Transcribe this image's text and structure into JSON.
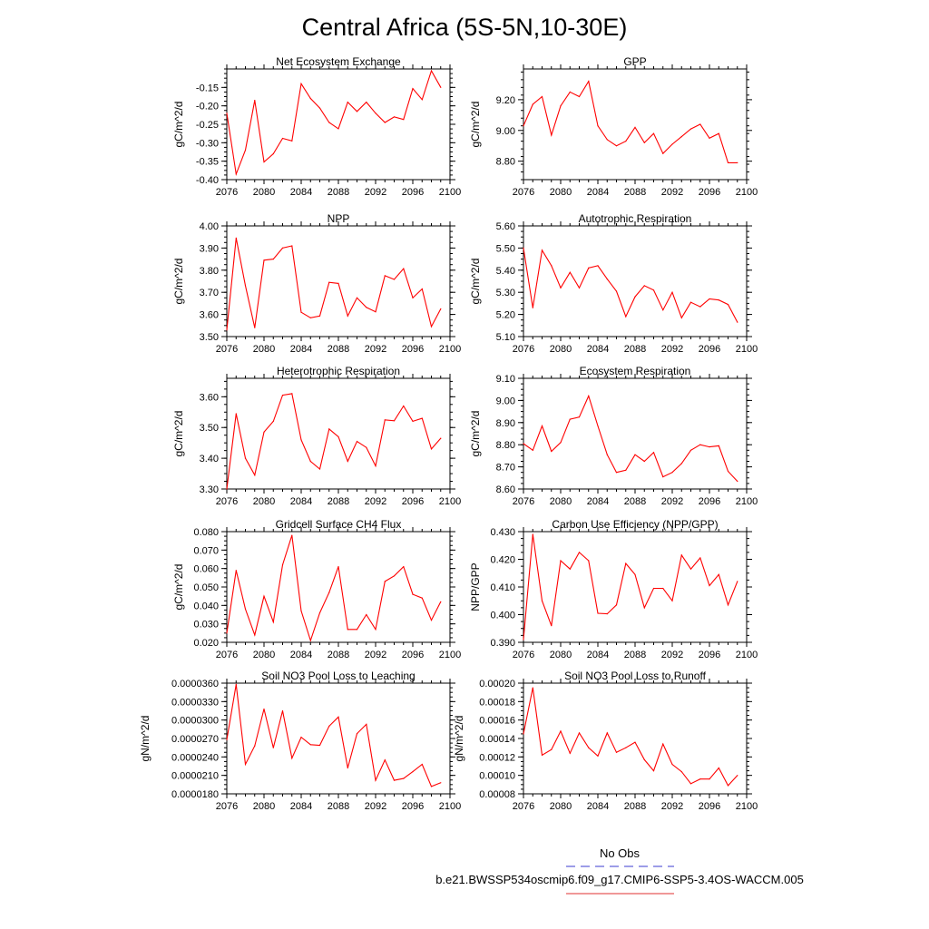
{
  "figure": {
    "title": "Central Africa (5S-5N,10-30E)",
    "legend": {
      "entries": [
        {
          "label": "No Obs",
          "color": "#3b3bd0",
          "dash": true
        },
        {
          "label": "b.e21.BWSSP534oscmip6.f09_g17.CMIP6-SSP5-3.4OS-WACCM.005",
          "color": "#e03030",
          "dash": false
        }
      ]
    },
    "line_color": "#ff0000"
  },
  "chart_data": [
    {
      "type": "line",
      "title": "Net Ecosystem Exchange",
      "ylabel": "gC/m^2/d",
      "xlim": [
        2076,
        2100
      ],
      "xticks": [
        "2076",
        "2080",
        "2084",
        "2088",
        "2092",
        "2096",
        "2100"
      ],
      "ylim": [
        -0.4,
        -0.1
      ],
      "yticks": [
        "-0.40",
        "-0.35",
        "-0.30",
        "-0.25",
        "-0.20",
        "-0.15"
      ],
      "series": [
        {
          "x": [
            2076,
            2077,
            2078,
            2079,
            2080,
            2081,
            2082,
            2083,
            2084,
            2085,
            2086,
            2087,
            2088,
            2089,
            2090,
            2091,
            2092,
            2093,
            2094,
            2095,
            2096,
            2097,
            2098,
            2099
          ],
          "values": [
            -0.22,
            -0.385,
            -0.32,
            -0.185,
            -0.352,
            -0.33,
            -0.288,
            -0.295,
            -0.14,
            -0.18,
            -0.206,
            -0.245,
            -0.262,
            -0.19,
            -0.215,
            -0.19,
            -0.22,
            -0.245,
            -0.23,
            -0.237,
            -0.153,
            -0.183,
            -0.105,
            -0.15
          ]
        }
      ]
    },
    {
      "type": "line",
      "title": "GPP",
      "ylabel": "gC/m^2/d",
      "xlim": [
        2076,
        2100
      ],
      "xticks": [
        "2076",
        "2080",
        "2084",
        "2088",
        "2092",
        "2096",
        "2100"
      ],
      "ylim": [
        8.68,
        9.4
      ],
      "yticks": [
        "8.80",
        "9.00",
        "9.20"
      ],
      "series": [
        {
          "x": [
            2076,
            2077,
            2078,
            2079,
            2080,
            2081,
            2082,
            2083,
            2084,
            2085,
            2086,
            2087,
            2088,
            2089,
            2090,
            2091,
            2092,
            2093,
            2094,
            2095,
            2096,
            2097,
            2098,
            2099
          ],
          "values": [
            9.03,
            9.17,
            9.22,
            8.97,
            9.16,
            9.25,
            9.22,
            9.32,
            9.03,
            8.94,
            8.9,
            8.93,
            9.02,
            8.92,
            8.98,
            8.85,
            8.91,
            8.96,
            9.01,
            9.04,
            8.95,
            8.98,
            8.79,
            8.79
          ]
        }
      ]
    },
    {
      "type": "line",
      "title": "NPP",
      "ylabel": "gC/m^2/d",
      "xlim": [
        2076,
        2100
      ],
      "xticks": [
        "2076",
        "2080",
        "2084",
        "2088",
        "2092",
        "2096",
        "2100"
      ],
      "ylim": [
        3.5,
        4.0
      ],
      "yticks": [
        "3.50",
        "3.60",
        "3.70",
        "3.80",
        "3.90",
        "4.00"
      ],
      "series": [
        {
          "x": [
            2076,
            2077,
            2078,
            2079,
            2080,
            2081,
            2082,
            2083,
            2084,
            2085,
            2086,
            2087,
            2088,
            2089,
            2090,
            2091,
            2092,
            2093,
            2094,
            2095,
            2096,
            2097,
            2098,
            2099
          ],
          "values": [
            3.53,
            3.945,
            3.73,
            3.54,
            3.845,
            3.85,
            3.9,
            3.91,
            3.61,
            3.585,
            3.593,
            3.745,
            3.74,
            3.593,
            3.675,
            3.632,
            3.612,
            3.775,
            3.758,
            3.807,
            3.675,
            3.715,
            3.545,
            3.625
          ]
        }
      ]
    },
    {
      "type": "line",
      "title": "Autotrophic Respiration",
      "ylabel": "gC/m^2/d",
      "xlim": [
        2076,
        2100
      ],
      "xticks": [
        "2076",
        "2080",
        "2084",
        "2088",
        "2092",
        "2096",
        "2100"
      ],
      "ylim": [
        5.1,
        5.6
      ],
      "yticks": [
        "5.10",
        "5.20",
        "5.30",
        "5.40",
        "5.50",
        "5.60"
      ],
      "series": [
        {
          "x": [
            2076,
            2077,
            2078,
            2079,
            2080,
            2081,
            2082,
            2083,
            2084,
            2085,
            2086,
            2087,
            2088,
            2089,
            2090,
            2091,
            2092,
            2093,
            2094,
            2095,
            2096,
            2097,
            2098,
            2099
          ],
          "values": [
            5.5,
            5.23,
            5.49,
            5.42,
            5.32,
            5.39,
            5.32,
            5.41,
            5.42,
            5.36,
            5.305,
            5.19,
            5.28,
            5.33,
            5.31,
            5.22,
            5.3,
            5.185,
            5.255,
            5.235,
            5.27,
            5.265,
            5.245,
            5.165
          ]
        }
      ]
    },
    {
      "type": "line",
      "title": "Heterotrophic Respiration",
      "ylabel": "gC/m^2/d",
      "xlim": [
        2076,
        2100
      ],
      "xticks": [
        "2076",
        "2080",
        "2084",
        "2088",
        "2092",
        "2096",
        "2100"
      ],
      "ylim": [
        3.3,
        3.66
      ],
      "yticks": [
        "3.30",
        "3.40",
        "3.50",
        "3.60"
      ],
      "series": [
        {
          "x": [
            2076,
            2077,
            2078,
            2079,
            2080,
            2081,
            2082,
            2083,
            2084,
            2085,
            2086,
            2087,
            2088,
            2089,
            2090,
            2091,
            2092,
            2093,
            2094,
            2095,
            2096,
            2097,
            2098,
            2099
          ],
          "values": [
            3.3,
            3.545,
            3.4,
            3.345,
            3.485,
            3.52,
            3.605,
            3.61,
            3.46,
            3.39,
            3.365,
            3.495,
            3.47,
            3.39,
            3.455,
            3.435,
            3.375,
            3.525,
            3.522,
            3.57,
            3.52,
            3.53,
            3.43,
            3.465
          ]
        }
      ]
    },
    {
      "type": "line",
      "title": "Ecosystem Respiration",
      "ylabel": "gC/m^2/d",
      "xlim": [
        2076,
        2100
      ],
      "xticks": [
        "2076",
        "2080",
        "2084",
        "2088",
        "2092",
        "2096",
        "2100"
      ],
      "ylim": [
        8.6,
        9.1
      ],
      "yticks": [
        "8.60",
        "8.70",
        "8.80",
        "8.90",
        "9.00",
        "9.10"
      ],
      "series": [
        {
          "x": [
            2076,
            2077,
            2078,
            2079,
            2080,
            2081,
            2082,
            2083,
            2084,
            2085,
            2086,
            2087,
            2088,
            2089,
            2090,
            2091,
            2092,
            2093,
            2094,
            2095,
            2096,
            2097,
            2098,
            2099
          ],
          "values": [
            8.805,
            8.775,
            8.885,
            8.77,
            8.81,
            8.915,
            8.925,
            9.02,
            8.885,
            8.755,
            8.675,
            8.685,
            8.755,
            8.725,
            8.765,
            8.655,
            8.675,
            8.715,
            8.775,
            8.8,
            8.79,
            8.795,
            8.68,
            8.635
          ]
        }
      ]
    },
    {
      "type": "line",
      "title": "Gridcell Surface CH4 Flux",
      "ylabel": "gC/m^2/d",
      "xlim": [
        2076,
        2100
      ],
      "xticks": [
        "2076",
        "2080",
        "2084",
        "2088",
        "2092",
        "2096",
        "2100"
      ],
      "ylim": [
        0.02,
        0.08
      ],
      "yticks": [
        "0.020",
        "0.030",
        "0.040",
        "0.050",
        "0.060",
        "0.070",
        "0.080"
      ],
      "series": [
        {
          "x": [
            2076,
            2077,
            2078,
            2079,
            2080,
            2081,
            2082,
            2083,
            2084,
            2085,
            2086,
            2087,
            2088,
            2089,
            2090,
            2091,
            2092,
            2093,
            2094,
            2095,
            2096,
            2097,
            2098,
            2099
          ],
          "values": [
            0.025,
            0.059,
            0.038,
            0.024,
            0.045,
            0.031,
            0.062,
            0.078,
            0.037,
            0.021,
            0.036,
            0.047,
            0.061,
            0.027,
            0.027,
            0.035,
            0.027,
            0.053,
            0.056,
            0.061,
            0.046,
            0.044,
            0.032,
            0.042
          ]
        }
      ]
    },
    {
      "type": "line",
      "title": "Carbon Use Efficiency (NPP/GPP)",
      "ylabel": "NPP/GPP",
      "xlim": [
        2076,
        2100
      ],
      "xticks": [
        "2076",
        "2080",
        "2084",
        "2088",
        "2092",
        "2096",
        "2100"
      ],
      "ylim": [
        0.39,
        0.43
      ],
      "yticks": [
        "0.390",
        "0.400",
        "0.410",
        "0.420",
        "0.430"
      ],
      "series": [
        {
          "x": [
            2076,
            2077,
            2078,
            2079,
            2080,
            2081,
            2082,
            2083,
            2084,
            2085,
            2086,
            2087,
            2088,
            2089,
            2090,
            2091,
            2092,
            2093,
            2094,
            2095,
            2096,
            2097,
            2098,
            2099
          ],
          "values": [
            0.391,
            0.429,
            0.405,
            0.396,
            0.4195,
            0.4165,
            0.4225,
            0.4195,
            0.4005,
            0.4003,
            0.4035,
            0.4185,
            0.4145,
            0.4025,
            0.4095,
            0.4095,
            0.405,
            0.4215,
            0.4165,
            0.4205,
            0.4105,
            0.4145,
            0.4035,
            0.412
          ]
        }
      ]
    },
    {
      "type": "line",
      "title": "Soil NO3 Pool Loss to Leaching",
      "ylabel": "gN/m^2/d",
      "xlim": [
        2076,
        2100
      ],
      "xticks": [
        "2076",
        "2080",
        "2084",
        "2088",
        "2092",
        "2096",
        "2100"
      ],
      "ylim": [
        1.8e-05,
        3.6e-05
      ],
      "yticks": [
        "0.0000180",
        "0.0000210",
        "0.0000240",
        "0.0000270",
        "0.0000300",
        "0.0000330",
        "0.0000360"
      ],
      "series": [
        {
          "x": [
            2076,
            2077,
            2078,
            2079,
            2080,
            2081,
            2082,
            2083,
            2084,
            2085,
            2086,
            2087,
            2088,
            2089,
            2090,
            2091,
            2092,
            2093,
            2094,
            2095,
            2096,
            2097,
            2098,
            2099
          ],
          "values": [
            2.68e-05,
            3.58e-05,
            2.28e-05,
            2.58e-05,
            3.18e-05,
            2.55e-05,
            3.15e-05,
            2.38e-05,
            2.72e-05,
            2.6e-05,
            2.59e-05,
            2.9e-05,
            3.05e-05,
            2.22e-05,
            2.78e-05,
            2.93e-05,
            2.02e-05,
            2.35e-05,
            2.02e-05,
            2.05e-05,
            2.16e-05,
            2.28e-05,
            1.92e-05,
            1.98e-05
          ]
        }
      ]
    },
    {
      "type": "line",
      "title": "Soil NO3 Pool Loss to Runoff",
      "ylabel": "gN/m^2/d",
      "xlim": [
        2076,
        2100
      ],
      "xticks": [
        "2076",
        "2080",
        "2084",
        "2088",
        "2092",
        "2096",
        "2100"
      ],
      "ylim": [
        8e-05,
        0.0002
      ],
      "yticks": [
        "0.00008",
        "0.00010",
        "0.00012",
        "0.00014",
        "0.00016",
        "0.00018",
        "0.00020"
      ],
      "series": [
        {
          "x": [
            2076,
            2077,
            2078,
            2079,
            2080,
            2081,
            2082,
            2083,
            2084,
            2085,
            2086,
            2087,
            2088,
            2089,
            2090,
            2091,
            2092,
            2093,
            2094,
            2095,
            2096,
            2097,
            2098,
            2099
          ],
          "values": [
            0.000145,
            0.000195,
            0.000122,
            0.000128,
            0.000148,
            0.000124,
            0.000146,
            0.00013,
            0.000121,
            0.000146,
            0.000125,
            0.00013,
            0.000136,
            0.000117,
            0.000105,
            0.000134,
            0.000112,
            0.000104,
            9.1e-05,
            9.6e-05,
            9.6e-05,
            0.000108,
            8.9e-05,
            0.0001
          ]
        }
      ]
    }
  ]
}
